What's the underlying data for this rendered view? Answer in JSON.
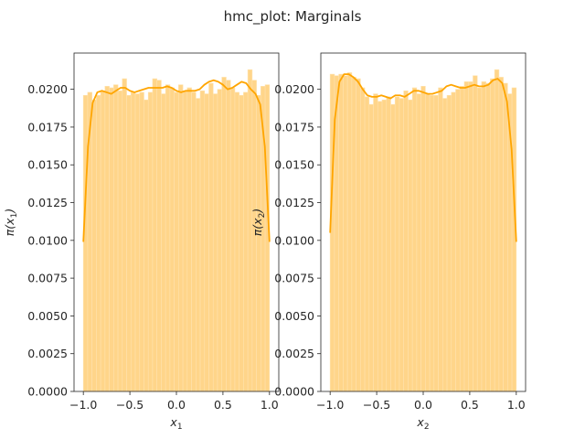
{
  "figure": {
    "title": "hmc_plot: Marginals"
  },
  "colors": {
    "bar_fill": "#ffd58a",
    "bar_edge": "#ffe2ad",
    "kde_line": "#ffa500",
    "axes_edge": "#262626",
    "text": "#262626"
  },
  "chart_data": [
    {
      "type": "bar",
      "subtype": "histogram-with-kde",
      "title": "",
      "xlabel": "x1",
      "xlabel_base": "x",
      "xlabel_sub": "1",
      "ylabel": "π(x1)",
      "ylabel_prefix": "π(",
      "ylabel_var": "x",
      "ylabel_sub": "1",
      "ylabel_suffix": ")",
      "xlim": [
        -1.1,
        1.1
      ],
      "ylim": [
        0,
        0.0224
      ],
      "xticks": [
        -1.0,
        -0.5,
        0.0,
        0.5,
        1.0
      ],
      "xtick_labels": [
        "−1.0",
        "−0.5",
        "0.0",
        "0.5",
        "1.0"
      ],
      "yticks": [
        0,
        0.0025,
        0.005,
        0.0075,
        0.01,
        0.0125,
        0.015,
        0.0175,
        0.02
      ],
      "ytick_labels": [
        "0.0000",
        "0.0025",
        "0.0050",
        "0.0075",
        "0.0100",
        "0.0125",
        "0.0150",
        "0.0175",
        "0.0200"
      ],
      "grid": false,
      "bin_range": [
        -1.0,
        1.0
      ],
      "values": [
        0.0196,
        0.0198,
        0.0193,
        0.0196,
        0.0199,
        0.0202,
        0.0201,
        0.0203,
        0.0199,
        0.0207,
        0.0196,
        0.0198,
        0.0197,
        0.0198,
        0.0193,
        0.0198,
        0.0207,
        0.0206,
        0.0197,
        0.0203,
        0.0201,
        0.0198,
        0.0203,
        0.0199,
        0.0201,
        0.0198,
        0.0194,
        0.0199,
        0.0197,
        0.0204,
        0.0197,
        0.02,
        0.0208,
        0.0206,
        0.0201,
        0.0198,
        0.0196,
        0.0198,
        0.0213,
        0.0206,
        0.0196,
        0.0202,
        0.0203
      ],
      "kde": {
        "x": [
          -1.0,
          -0.95,
          -0.9,
          -0.85,
          -0.8,
          -0.75,
          -0.7,
          -0.65,
          -0.6,
          -0.55,
          -0.5,
          -0.45,
          -0.4,
          -0.35,
          -0.3,
          -0.25,
          -0.2,
          -0.15,
          -0.1,
          -0.05,
          0.0,
          0.05,
          0.1,
          0.15,
          0.2,
          0.25,
          0.3,
          0.35,
          0.4,
          0.45,
          0.5,
          0.55,
          0.6,
          0.65,
          0.7,
          0.75,
          0.8,
          0.85,
          0.9,
          0.95,
          1.0
        ],
        "y": [
          0.0099,
          0.0162,
          0.0191,
          0.0198,
          0.0199,
          0.0198,
          0.0197,
          0.0199,
          0.0201,
          0.0201,
          0.0199,
          0.0198,
          0.0199,
          0.02,
          0.0201,
          0.0201,
          0.0201,
          0.0201,
          0.0202,
          0.0201,
          0.0199,
          0.0198,
          0.0199,
          0.0199,
          0.0199,
          0.02,
          0.0203,
          0.0205,
          0.0206,
          0.0205,
          0.0203,
          0.02,
          0.0201,
          0.0203,
          0.0205,
          0.0204,
          0.02,
          0.0197,
          0.019,
          0.0162,
          0.0099
        ]
      }
    },
    {
      "type": "bar",
      "subtype": "histogram-with-kde",
      "title": "",
      "xlabel": "x2",
      "xlabel_base": "x",
      "xlabel_sub": "2",
      "ylabel": "π(x2)",
      "ylabel_prefix": "π(",
      "ylabel_var": "x",
      "ylabel_sub": "2",
      "ylabel_suffix": ")",
      "xlim": [
        -1.1,
        1.1
      ],
      "ylim": [
        0,
        0.0224
      ],
      "xticks": [
        -1.0,
        -0.5,
        0.0,
        0.5,
        1.0
      ],
      "xtick_labels": [
        "−1.0",
        "−0.5",
        "0.0",
        "0.5",
        "1.0"
      ],
      "yticks": [
        0,
        0.0025,
        0.005,
        0.0075,
        0.01,
        0.0125,
        0.015,
        0.0175,
        0.02
      ],
      "ytick_labels": [
        "0.0000",
        "0.0025",
        "0.0050",
        "0.0075",
        "0.0100",
        "0.0125",
        "0.0150",
        "0.0175",
        "0.0200"
      ],
      "grid": false,
      "bin_range": [
        -1.0,
        1.0
      ],
      "values": [
        0.021,
        0.0209,
        0.021,
        0.0209,
        0.0211,
        0.0208,
        0.0207,
        0.0201,
        0.0195,
        0.019,
        0.0197,
        0.0192,
        0.0193,
        0.0195,
        0.019,
        0.0195,
        0.0194,
        0.0199,
        0.0193,
        0.0201,
        0.0197,
        0.0202,
        0.0197,
        0.0196,
        0.0196,
        0.0201,
        0.0194,
        0.0196,
        0.0198,
        0.02,
        0.0202,
        0.0205,
        0.0205,
        0.0209,
        0.0201,
        0.0205,
        0.0204,
        0.0207,
        0.0213,
        0.0208,
        0.0204,
        0.0197,
        0.0201
      ],
      "kde": {
        "x": [
          -1.0,
          -0.95,
          -0.9,
          -0.85,
          -0.8,
          -0.75,
          -0.7,
          -0.65,
          -0.6,
          -0.55,
          -0.5,
          -0.45,
          -0.4,
          -0.35,
          -0.3,
          -0.25,
          -0.2,
          -0.15,
          -0.1,
          -0.05,
          0.0,
          0.05,
          0.1,
          0.15,
          0.2,
          0.25,
          0.3,
          0.35,
          0.4,
          0.45,
          0.5,
          0.55,
          0.6,
          0.65,
          0.7,
          0.75,
          0.8,
          0.85,
          0.9,
          0.95,
          1.0
        ],
        "y": [
          0.0105,
          0.018,
          0.0205,
          0.021,
          0.021,
          0.0208,
          0.0205,
          0.02,
          0.0196,
          0.0195,
          0.0195,
          0.0196,
          0.0195,
          0.0194,
          0.0196,
          0.0196,
          0.0195,
          0.0197,
          0.0199,
          0.0199,
          0.0198,
          0.0197,
          0.0197,
          0.0198,
          0.0199,
          0.0202,
          0.0203,
          0.0202,
          0.0201,
          0.0201,
          0.0202,
          0.0203,
          0.0202,
          0.0202,
          0.0203,
          0.0206,
          0.0207,
          0.0204,
          0.0192,
          0.016,
          0.0099
        ]
      }
    }
  ]
}
